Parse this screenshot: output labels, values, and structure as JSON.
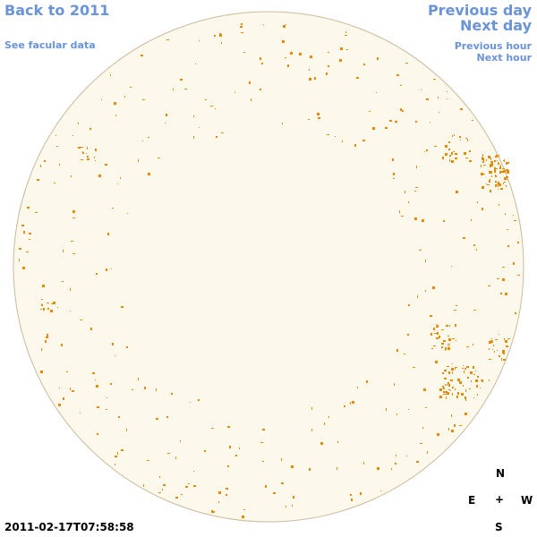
{
  "links": {
    "back": "Back to 2011",
    "facular_data": "See facular data",
    "previous_day": "Previous day",
    "next_day": "Next day",
    "previous_hour": "Previous hour",
    "next_hour": "Next hour"
  },
  "timestamp": "2011-02-17T07:58:58",
  "compass": {
    "north": "N",
    "east": "E",
    "center": "+",
    "west": "W",
    "south": "S"
  }
}
